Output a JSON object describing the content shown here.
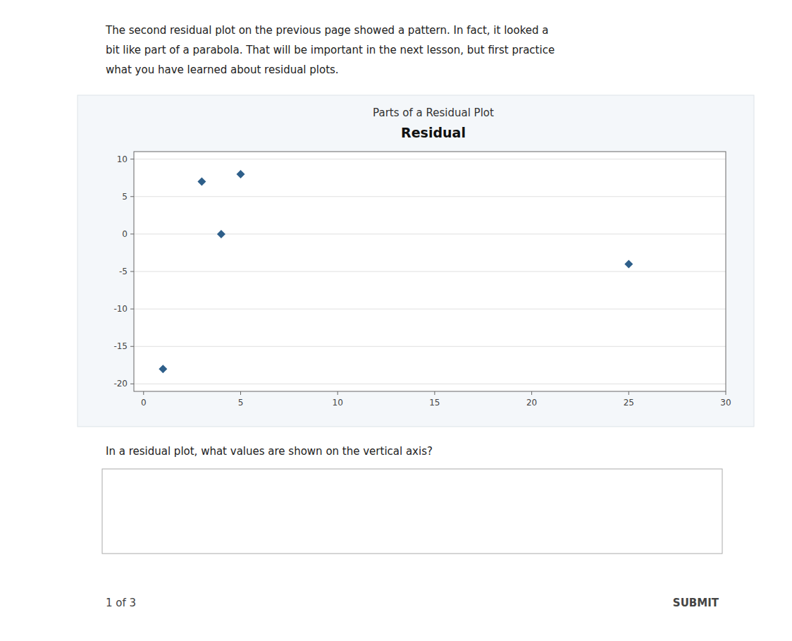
{
  "paragraph": [
    "The second residual plot on the previous page showed a pattern. In fact, it looked a",
    "bit like part of a parabola. That will be important in the next lesson, but first practice",
    "what you have learned about residual plots."
  ],
  "question": "In a residual plot, what values are shown on the vertical axis?",
  "footer_left": "1 of 3",
  "footer_right": "SUBMIT",
  "chart_data": {
    "type": "scatter",
    "title": "Parts of a Residual Plot",
    "ylabel": "Residual",
    "x": [
      3,
      5,
      4,
      1,
      25
    ],
    "values": [
      7,
      8,
      0,
      -18,
      -4
    ],
    "color": "#2e5f8a",
    "marker": "diamond",
    "xlim": [
      -0.5,
      30
    ],
    "ylim": [
      -21,
      11
    ],
    "xticks": [
      0,
      5,
      10,
      15,
      20,
      25,
      30
    ],
    "yticks": [
      -20,
      -15,
      -10,
      -5,
      0,
      5,
      10
    ],
    "grid": "y"
  }
}
